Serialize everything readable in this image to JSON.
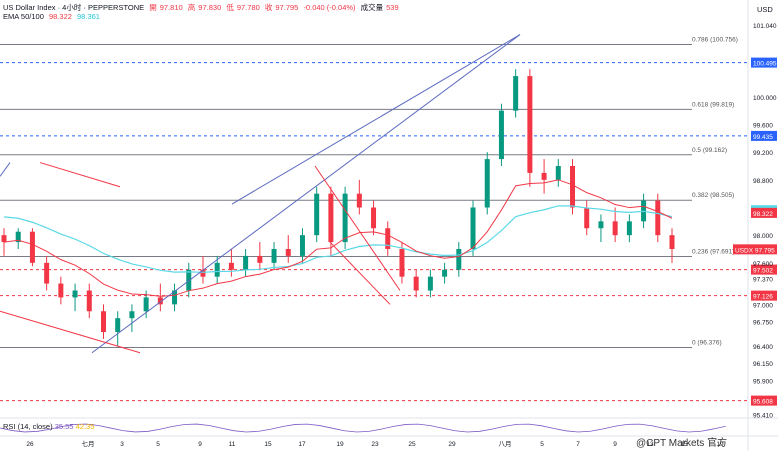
{
  "header": {
    "symbol": "US Dollar Index · 4小时 · PEPPERSTONE",
    "open_label": "開",
    "open": "97.810",
    "high_label": "高",
    "high": "97.830",
    "low_label": "低",
    "low": "97.780",
    "close_label": "收",
    "close": "97.795",
    "change": "-0.040 (-0.04%)",
    "volume_label": "成交量",
    "volume": "539",
    "ema_label": "EMA 50/100",
    "ema50": "98.322",
    "ema100": "98.361",
    "currency": "USD",
    "rsi_label": "RSI (14, close)",
    "rsi_value": "35.55",
    "rsi_ma": "42.35"
  },
  "watermark": "@CPT Markets 官方",
  "colors": {
    "up": "#089981",
    "down": "#f23645",
    "ema50": "#f23645",
    "ema100": "#5ad8e6",
    "channel": "#5c6bc0",
    "fib": "#787b86",
    "level_blue": "#2962ff",
    "level_red": "#f23645"
  },
  "chart_data": {
    "type": "candlestick",
    "ylim": [
      95.4,
      101.4
    ],
    "x_ticks": [
      "26",
      "七月",
      "3",
      "5",
      "9",
      "11",
      "15",
      "17",
      "19",
      "23",
      "25",
      "29",
      "八月",
      "5",
      "7",
      "9",
      "13",
      "15",
      "19"
    ],
    "y_ticks": [
      "101.040",
      "100.000",
      "99.600",
      "99.200",
      "98.800",
      "98.000",
      "97.600",
      "97.370",
      "97.000",
      "96.750",
      "96.400",
      "96.150",
      "95.900",
      "95.410"
    ],
    "fib_levels": [
      {
        "label": "0.786 (100.756)",
        "value": 100.756
      },
      {
        "label": "0.618 (99.819)",
        "value": 99.819
      },
      {
        "label": "0.5 (99.162)",
        "value": 99.162
      },
      {
        "label": "0.382 (98.505)",
        "value": 98.505
      },
      {
        "label": "0.236 (97.691)",
        "value": 97.691
      },
      {
        "label": "0 (96.376)",
        "value": 96.376
      }
    ],
    "horizontal_levels": [
      {
        "value": 100.495,
        "label": "100.495",
        "style": "blue-dashed"
      },
      {
        "value": 99.435,
        "label": "99.435",
        "style": "blue-dashed"
      },
      {
        "value": 97.502,
        "label": "97.502",
        "style": "red-dashed"
      },
      {
        "value": 97.126,
        "label": "97.126",
        "style": "red-dashed"
      },
      {
        "value": 95.608,
        "label": "95.608",
        "style": "red-dashed"
      }
    ],
    "price_tags": [
      {
        "label": "98.361",
        "value": 98.361,
        "color": "#5ad8e6"
      },
      {
        "label": "98.322",
        "value": 98.322,
        "color": "#f23645"
      },
      {
        "label": "USDX",
        "price": "97.795",
        "value": 97.795,
        "color": "#f23645"
      }
    ],
    "candles": [
      [
        98.0,
        98.1,
        97.7,
        97.9
      ],
      [
        97.9,
        98.1,
        97.8,
        98.05
      ],
      [
        98.05,
        98.1,
        97.55,
        97.6
      ],
      [
        97.6,
        97.7,
        97.2,
        97.3
      ],
      [
        97.3,
        97.4,
        97.0,
        97.1
      ],
      [
        97.1,
        97.3,
        96.9,
        97.2
      ],
      [
        97.2,
        97.3,
        96.8,
        96.9
      ],
      [
        96.9,
        97.0,
        96.5,
        96.6
      ],
      [
        96.6,
        96.9,
        96.4,
        96.8
      ],
      [
        96.8,
        97.0,
        96.6,
        96.9
      ],
      [
        96.9,
        97.2,
        96.8,
        97.1
      ],
      [
        97.1,
        97.3,
        96.9,
        97.0
      ],
      [
        97.0,
        97.3,
        96.9,
        97.2
      ],
      [
        97.2,
        97.6,
        97.1,
        97.5
      ],
      [
        97.5,
        97.7,
        97.3,
        97.4
      ],
      [
        97.4,
        97.7,
        97.3,
        97.6
      ],
      [
        97.6,
        97.8,
        97.4,
        97.5
      ],
      [
        97.5,
        97.8,
        97.4,
        97.7
      ],
      [
        97.7,
        97.9,
        97.5,
        97.6
      ],
      [
        97.6,
        97.9,
        97.5,
        97.8
      ],
      [
        97.8,
        98.0,
        97.6,
        97.7
      ],
      [
        97.7,
        98.1,
        97.6,
        98.0
      ],
      [
        98.0,
        98.7,
        97.9,
        98.6
      ],
      [
        98.6,
        98.7,
        97.7,
        97.9
      ],
      [
        97.9,
        98.7,
        97.8,
        98.6
      ],
      [
        98.6,
        98.8,
        98.3,
        98.4
      ],
      [
        98.4,
        98.5,
        98.0,
        98.1
      ],
      [
        98.1,
        98.2,
        97.7,
        97.8
      ],
      [
        97.8,
        97.9,
        97.3,
        97.4
      ],
      [
        97.4,
        97.5,
        97.1,
        97.2
      ],
      [
        97.2,
        97.5,
        97.1,
        97.4
      ],
      [
        97.4,
        97.6,
        97.3,
        97.5
      ],
      [
        97.5,
        97.9,
        97.4,
        97.8
      ],
      [
        97.8,
        98.5,
        97.7,
        98.4
      ],
      [
        98.4,
        99.2,
        98.3,
        99.1
      ],
      [
        99.1,
        99.9,
        99.0,
        99.8
      ],
      [
        99.8,
        100.4,
        99.7,
        100.3
      ],
      [
        100.3,
        100.4,
        98.7,
        98.9
      ],
      [
        98.9,
        99.1,
        98.6,
        98.8
      ],
      [
        98.8,
        99.1,
        98.7,
        99.0
      ],
      [
        99.0,
        99.1,
        98.3,
        98.4
      ],
      [
        98.4,
        98.5,
        98.0,
        98.1
      ],
      [
        98.1,
        98.3,
        97.9,
        98.2
      ],
      [
        98.2,
        98.4,
        97.9,
        98.0
      ],
      [
        98.0,
        98.3,
        97.9,
        98.2
      ],
      [
        98.2,
        98.6,
        98.1,
        98.5
      ],
      [
        98.5,
        98.6,
        97.9,
        98.0
      ],
      [
        98.0,
        98.1,
        97.6,
        97.8
      ]
    ]
  }
}
